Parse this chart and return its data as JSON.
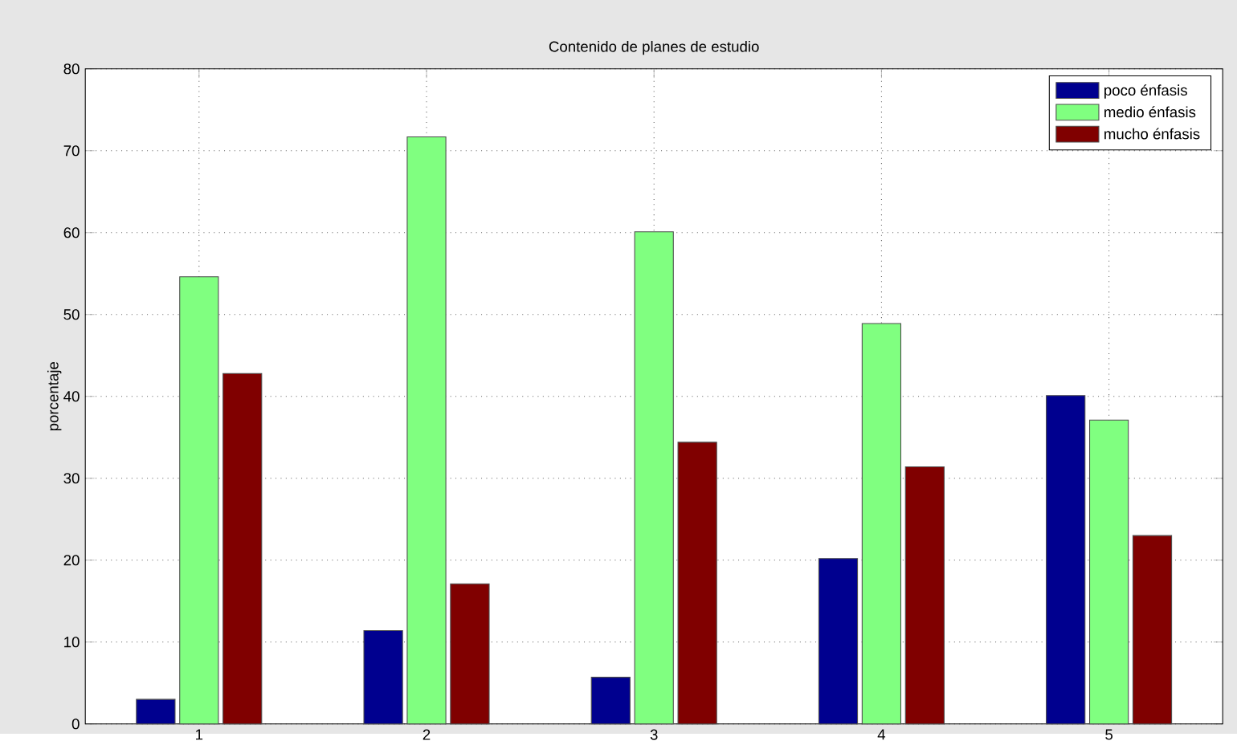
{
  "chart_data": {
    "type": "bar",
    "title": "Contenido de planes de estudio",
    "ylabel": "porcentaje",
    "categories": [
      "1",
      "2",
      "3",
      "4",
      "5"
    ],
    "series": [
      {
        "name": "poco énfasis",
        "color": "#00008f",
        "values": [
          3,
          11.4,
          5.7,
          20.2,
          40.1
        ]
      },
      {
        "name": "medio énfasis",
        "color": "#80ff80",
        "values": [
          54.6,
          71.7,
          60.1,
          48.9,
          37.1
        ]
      },
      {
        "name": "mucho énfasis",
        "color": "#800000",
        "values": [
          42.8,
          17.1,
          34.4,
          31.4,
          23
        ]
      }
    ],
    "ylim": [
      0,
      80
    ],
    "yticks": [
      0,
      10,
      20,
      30,
      40,
      50,
      60,
      70,
      80
    ],
    "grid": true,
    "legend": "top right"
  }
}
